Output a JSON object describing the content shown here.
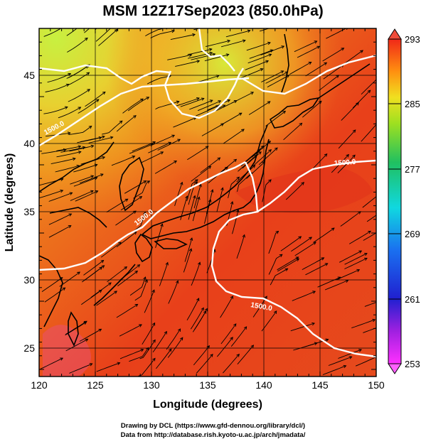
{
  "title": "MSM 12Z17Sep2023 (850.0hPa)",
  "axes": {
    "xlabel": "Longitude (degrees)",
    "ylabel": "Latitude  (degrees)",
    "x_ticks": [
      "120",
      "125",
      "130",
      "135",
      "140",
      "145",
      "150"
    ],
    "y_ticks": [
      "25",
      "30",
      "35",
      "40",
      "45"
    ]
  },
  "colorbar": {
    "labels": [
      "293",
      "285",
      "277",
      "269",
      "261",
      "253"
    ],
    "min": 253,
    "max": 293
  },
  "contours": {
    "labels": [
      "1500.0",
      "1500.0",
      "1500.0",
      "1500.0"
    ]
  },
  "credits": {
    "line1": "Drawing by DCL (https://www.gfd-dennou.org/library/dcl/)",
    "line2": "Data from http://database.rish.kyoto-u.ac.jp/arch/jmadata/"
  },
  "map": {
    "lon_range": [
      120,
      150
    ],
    "lat_range": [
      22.5,
      48
    ]
  },
  "colors": {
    "warm_field": "#e8401a",
    "cool_field": "#c8e83a",
    "contour": "#ffffff",
    "streamline": "#000000"
  }
}
